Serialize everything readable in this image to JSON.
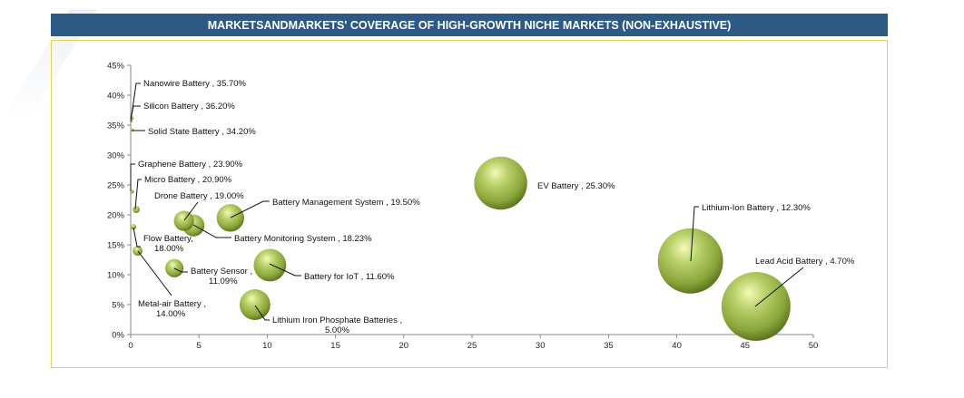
{
  "title": "MARKETSANDMARKETS' COVERAGE OF HIGH-GROWTH NICHE MARKETS (NON-EXHAUSTIVE)",
  "colors": {
    "title_bar": "#2c5a85",
    "frame_border": "#e8cf5a",
    "bubble_light": "#eef7a8",
    "bubble_mid": "#a9c257",
    "bubble_dark": "#5f7a22",
    "axis": "#888888"
  },
  "chart_data": {
    "type": "bubble",
    "title": "MARKETSANDMARKETS' COVERAGE OF HIGH-GROWTH NICHE MARKETS (NON-EXHAUSTIVE)",
    "xlabel": "",
    "ylabel": "",
    "xlim": [
      0,
      50
    ],
    "ylim": [
      0,
      45
    ],
    "x_ticks": [
      "0",
      "5",
      "10",
      "15",
      "20",
      "25",
      "30",
      "35",
      "40",
      "45",
      "50"
    ],
    "y_ticks": [
      "0%",
      "5%",
      "10%",
      "15%",
      "20%",
      "25%",
      "30%",
      "35%",
      "40%",
      "45%"
    ],
    "grid": false,
    "legend": "none",
    "points": [
      {
        "name": "Nanowire Battery",
        "label": "Nanowire Battery  , 35.70%",
        "x": 0.05,
        "y": 35.7,
        "size": 0.05
      },
      {
        "name": "Silicon Battery",
        "label": "Silicon Battery  , 36.20%",
        "x": 0.1,
        "y": 36.2,
        "size": 0.1
      },
      {
        "name": "Solid State Battery",
        "label": "Solid State Battery  , 34.20%",
        "x": 0.1,
        "y": 34.2,
        "size": 0.1
      },
      {
        "name": "Graphene Battery",
        "label": "Graphene Battery  , 23.90%",
        "x": 0.1,
        "y": 23.9,
        "size": 0.15
      },
      {
        "name": "Micro Battery",
        "label": "Micro Battery , 20.90%",
        "x": 0.4,
        "y": 20.9,
        "size": 0.5
      },
      {
        "name": "Flow Battery",
        "label": "Flow Battery,",
        "label2": "18.00%",
        "x": 0.2,
        "y": 18.0,
        "size": 0.3
      },
      {
        "name": "Metal-air Battery",
        "label": "Metal-air Battery ,",
        "label2": "14.00%",
        "x": 0.5,
        "y": 14.0,
        "size": 0.9
      },
      {
        "name": "Drone Battery",
        "label": "Drone Battery  , 19.00%",
        "x": 3.9,
        "y": 19.0,
        "size": 3.9
      },
      {
        "name": "Battery Monitoring System",
        "label": "Battery Monitoring System  , 18.23%",
        "x": 4.6,
        "y": 18.23,
        "size": 4.6
      },
      {
        "name": "Battery Management System",
        "label": "Battery Management System  , 19.50%",
        "x": 7.3,
        "y": 19.5,
        "size": 7.3
      },
      {
        "name": "Battery Sensor",
        "label": "Battery Sensor  ,",
        "label2": "11.09%",
        "x": 3.2,
        "y": 11.09,
        "size": 3.2
      },
      {
        "name": "Battery for IoT",
        "label": "Battery  for IoT , 11.60%",
        "x": 10.2,
        "y": 11.6,
        "size": 10.2
      },
      {
        "name": "Lithium Iron Phosphate Batteries",
        "label": "Lithium Iron Phosphate Batteries  ,",
        "label2": "5.00%",
        "x": 9.1,
        "y": 5.0,
        "size": 9.1
      },
      {
        "name": "EV Battery",
        "label": "EV Battery  , 25.30%",
        "x": 27.1,
        "y": 25.3,
        "size": 27.1
      },
      {
        "name": "Lithium-Ion Battery",
        "label": "Lithium-Ion Battery  , 12.30%",
        "x": 41.0,
        "y": 12.3,
        "size": 41.0
      },
      {
        "name": "Lead Acid Battery",
        "label": "Lead Acid Battery  , 4.70%",
        "x": 45.8,
        "y": 4.7,
        "size": 45.8
      }
    ]
  }
}
